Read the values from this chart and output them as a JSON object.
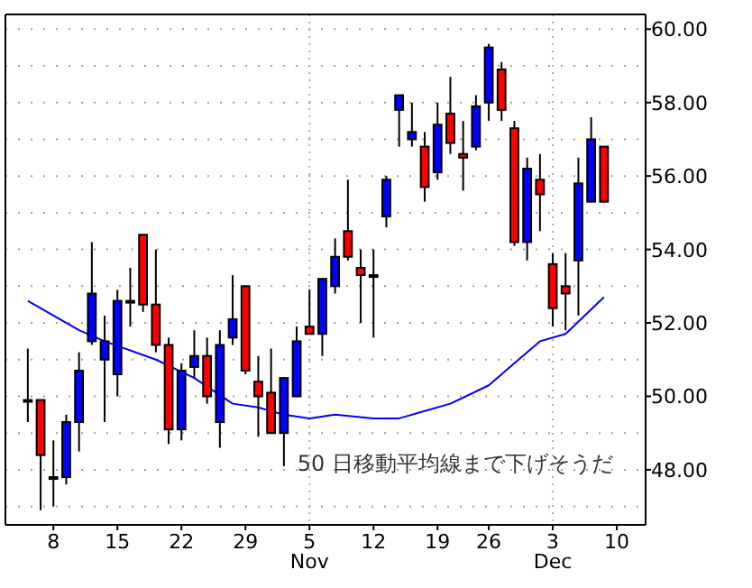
{
  "chart_data": {
    "type": "candlestick",
    "categories": [
      null,
      null,
      "8",
      null,
      null,
      null,
      null,
      "15",
      null,
      null,
      null,
      null,
      "22",
      null,
      null,
      null,
      null,
      "29",
      null,
      null,
      null,
      null,
      "5\nNov",
      null,
      null,
      null,
      null,
      "12",
      null,
      null,
      null,
      null,
      "19",
      null,
      null,
      null,
      "26",
      null,
      null,
      null,
      null,
      "3\nDec",
      null,
      null,
      null,
      null,
      "10"
    ],
    "ohlc": [
      [
        49.9,
        51.3,
        49.3,
        49.9
      ],
      [
        49.9,
        49.9,
        46.9,
        48.4
      ],
      [
        47.8,
        48.8,
        47.0,
        47.8
      ],
      [
        47.8,
        49.5,
        47.6,
        49.3
      ],
      [
        49.3,
        51.2,
        48.5,
        50.7
      ],
      [
        51.5,
        54.2,
        51.4,
        52.8
      ],
      [
        51.0,
        52.2,
        49.3,
        51.5
      ],
      [
        50.6,
        52.9,
        50.0,
        52.6
      ],
      [
        52.6,
        53.5,
        51.9,
        52.6
      ],
      [
        54.4,
        54.4,
        52.3,
        52.5
      ],
      [
        52.5,
        54.0,
        51.2,
        51.4
      ],
      [
        51.4,
        51.6,
        48.7,
        49.1
      ],
      [
        49.1,
        50.9,
        48.8,
        50.7
      ],
      [
        50.8,
        51.8,
        50.5,
        51.1
      ],
      [
        51.1,
        51.6,
        49.8,
        50.0
      ],
      [
        49.3,
        51.8,
        48.6,
        51.4
      ],
      [
        51.6,
        53.3,
        51.4,
        52.1
      ],
      [
        53.0,
        53.0,
        50.6,
        50.7
      ],
      [
        50.4,
        51.1,
        48.9,
        50.0
      ],
      [
        50.1,
        51.3,
        49.0,
        49.0
      ],
      [
        49.0,
        50.5,
        48.1,
        50.5
      ],
      [
        50.0,
        51.9,
        50.0,
        51.5
      ],
      [
        51.9,
        52.9,
        51.7,
        51.7
      ],
      [
        51.7,
        53.2,
        51.1,
        53.2
      ],
      [
        53.0,
        54.3,
        52.8,
        53.8
      ],
      [
        54.5,
        55.9,
        53.7,
        53.8
      ],
      [
        53.5,
        54.0,
        52.0,
        53.3
      ],
      [
        53.3,
        54.0,
        51.6,
        53.3
      ],
      [
        54.9,
        56.0,
        54.6,
        55.9
      ],
      [
        57.8,
        58.2,
        56.8,
        58.2
      ],
      [
        57.0,
        58.0,
        56.8,
        57.2
      ],
      [
        56.8,
        57.2,
        55.3,
        55.7
      ],
      [
        56.1,
        58.0,
        55.9,
        57.4
      ],
      [
        57.7,
        58.7,
        56.6,
        56.9
      ],
      [
        56.6,
        57.5,
        55.6,
        56.5
      ],
      [
        56.8,
        58.2,
        56.7,
        57.9
      ],
      [
        58.0,
        59.6,
        57.5,
        59.5
      ],
      [
        58.9,
        59.1,
        57.5,
        57.8
      ],
      [
        57.3,
        57.5,
        54.1,
        54.2
      ],
      [
        54.2,
        56.5,
        53.7,
        56.2
      ],
      [
        55.9,
        56.6,
        54.5,
        55.5
      ],
      [
        53.6,
        53.9,
        51.9,
        52.4
      ],
      [
        53.0,
        53.9,
        51.8,
        52.8
      ],
      [
        53.7,
        56.5,
        52.2,
        55.8
      ],
      [
        55.3,
        57.6,
        55.3,
        57.0
      ],
      [
        56.8,
        56.8,
        55.3,
        55.3
      ],
      null
    ],
    "colors": [
      "#000000",
      "#ff0000",
      "#000000",
      "#0000ff",
      "#0000ff",
      "#0000ff",
      "#0000ff",
      "#0000ff",
      "#000000",
      "#ff0000",
      "#ff0000",
      "#ff0000",
      "#0000ff",
      "#0000ff",
      "#ff0000",
      "#0000ff",
      "#0000ff",
      "#ff0000",
      "#ff0000",
      "#ff0000",
      "#0000ff",
      "#0000ff",
      "#ff0000",
      "#0000ff",
      "#0000ff",
      "#ff0000",
      "#ff0000",
      "#000000",
      "#0000ff",
      "#0000ff",
      "#0000ff",
      "#ff0000",
      "#0000ff",
      "#ff0000",
      "#ff0000",
      "#0000ff",
      "#0000ff",
      "#ff0000",
      "#ff0000",
      "#0000ff",
      "#ff0000",
      "#ff0000",
      "#ff0000",
      "#0000ff",
      "#0000ff",
      "#ff0000",
      null
    ],
    "series": [
      {
        "type": "line",
        "color": "#0000ff",
        "values": [
          52.6,
          null,
          52.2,
          null,
          51.8,
          null,
          51.5,
          null,
          null,
          null,
          51.0,
          null,
          null,
          50.5,
          null,
          null,
          49.8,
          null,
          49.7,
          null,
          49.5,
          null,
          49.4,
          null,
          49.5,
          null,
          null,
          49.4,
          null,
          49.4,
          null,
          49.6,
          null,
          49.8,
          null,
          null,
          50.3,
          null,
          50.9,
          null,
          51.5,
          null,
          51.7,
          null,
          null,
          52.7,
          null
        ]
      }
    ],
    "ylim": [
      46.5,
      60.4
    ],
    "yticks": [
      {
        "value": 47,
        "label": null
      },
      {
        "value": 48,
        "label": "48.00"
      },
      {
        "value": 49,
        "label": null
      },
      {
        "value": 50,
        "label": "50.00"
      },
      {
        "value": 51,
        "label": null
      },
      {
        "value": 52,
        "label": "52.00"
      },
      {
        "value": 53,
        "label": null
      },
      {
        "value": 54,
        "label": "54.00"
      },
      {
        "value": 55,
        "label": null
      },
      {
        "value": 56,
        "label": "56.00"
      },
      {
        "value": 57,
        "label": null
      },
      {
        "value": 58,
        "label": "58.00"
      },
      {
        "value": 59,
        "label": null
      },
      {
        "value": 60,
        "label": "60.00"
      }
    ],
    "grid": true,
    "annotations": [
      "50 日移動平均線まで下げそうだ"
    ]
  }
}
